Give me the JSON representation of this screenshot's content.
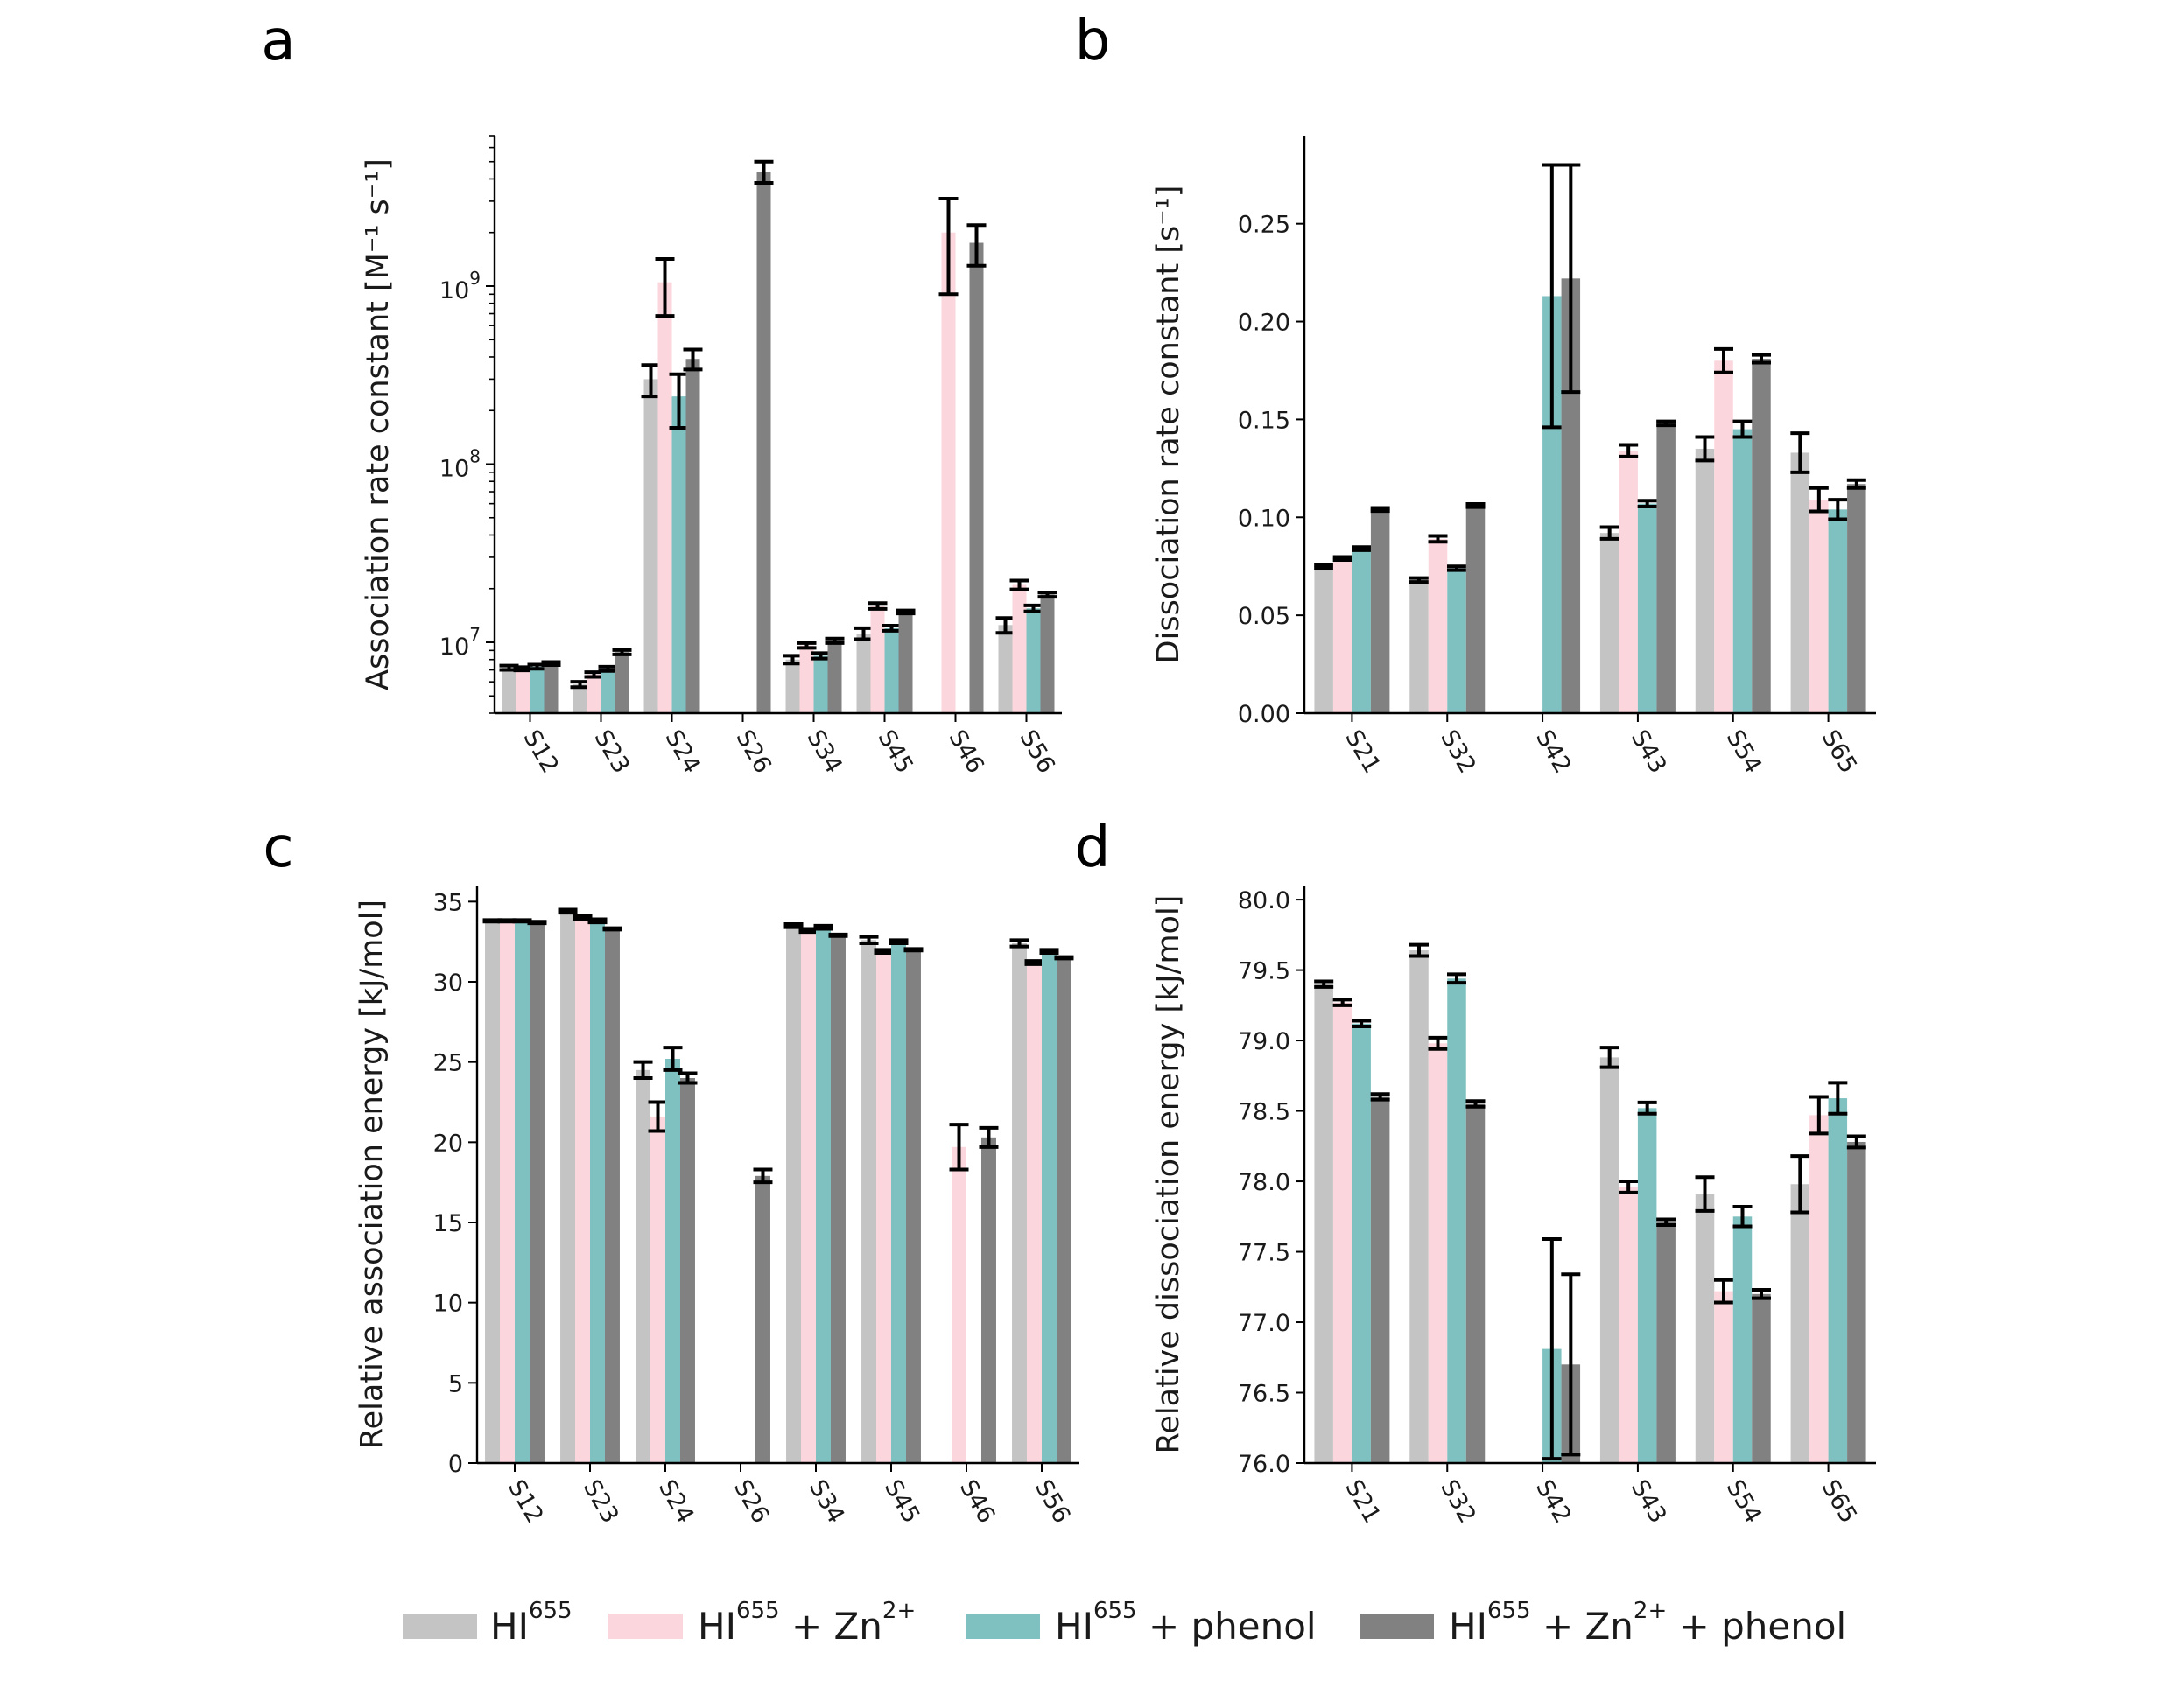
{
  "series_style": [
    {
      "color": "#c4c4c4"
    },
    {
      "color": "#fbd6dd"
    },
    {
      "color": "#7fc1c1"
    },
    {
      "color": "#818181"
    }
  ],
  "legend": [
    {
      "base": "HI",
      "sup": "655",
      "rest": ""
    },
    {
      "base": "HI",
      "sup": "655",
      "rest": " + Zn",
      "sup2": "2+"
    },
    {
      "base": "HI",
      "sup": "655",
      "rest": " + phenol"
    },
    {
      "base": "HI",
      "sup": "655",
      "rest": " + Zn",
      "sup2": "2+",
      "rest2": " + phenol"
    }
  ],
  "chart_data": [
    {
      "panel": "a",
      "type": "bar",
      "ylabel": "Association rate constant [M⁻¹ s⁻¹]",
      "yscale": "log",
      "ylim": [
        4000000,
        7000000000
      ],
      "yticks": [
        10000000,
        100000000,
        1000000000
      ],
      "ytick_labels": [
        {
          "base": "10",
          "exp": "7"
        },
        {
          "base": "10",
          "exp": "8"
        },
        {
          "base": "10",
          "exp": "9"
        }
      ],
      "categories": [
        "S12",
        "S23",
        "S24",
        "S26",
        "S34",
        "S45",
        "S46",
        "S56"
      ],
      "series": [
        {
          "values": [
            7200000.0,
            5800000.0,
            300000000.0,
            null,
            8000000.0,
            11200000.0,
            null,
            12500000.0
          ],
          "err": [
            200000.0,
            200000.0,
            60000000.0,
            null,
            400000.0,
            800000.0,
            null,
            1200000.0
          ]
        },
        {
          "values": [
            7100000.0,
            6600000.0,
            1050000000.0,
            null,
            9600000.0,
            16000000.0,
            2000000000.0,
            21000000.0
          ],
          "err": [
            150000.0,
            200000.0,
            370000000.0,
            null,
            300000.0,
            600000.0,
            1100000000.0,
            1200000.0
          ]
        },
        {
          "values": [
            7300000.0,
            7100000.0,
            240000000.0,
            null,
            8400000.0,
            12000000.0,
            null,
            15500000.0
          ],
          "err": [
            200000.0,
            200000.0,
            80000000.0,
            null,
            300000.0,
            400000.0,
            null,
            600000.0
          ]
        },
        {
          "values": [
            7600000.0,
            8800000.0,
            390000000.0,
            4400000000.0,
            10200000.0,
            14800000.0,
            1750000000.0,
            18500000.0
          ],
          "err": [
            150000.0,
            250000.0,
            50000000.0,
            600000000.0,
            300000.0,
            300000.0,
            450000000.0,
            500000.0
          ]
        }
      ]
    },
    {
      "panel": "b",
      "type": "bar",
      "ylabel": "Dissociation rate constant [s⁻¹]",
      "ylim": [
        0,
        0.295
      ],
      "yticks": [
        0.0,
        0.05,
        0.1,
        0.15,
        0.2,
        0.25
      ],
      "ytick_labels": [
        "0.00",
        "0.05",
        "0.10",
        "0.15",
        "0.20",
        "0.25"
      ],
      "categories": [
        "S21",
        "S32",
        "S42",
        "S43",
        "S54",
        "S65"
      ],
      "series": [
        {
          "values": [
            0.075,
            0.068,
            null,
            0.092,
            0.135,
            0.133
          ],
          "err": [
            0.0008,
            0.001,
            null,
            0.003,
            0.006,
            0.01
          ]
        },
        {
          "values": [
            0.079,
            0.089,
            null,
            0.134,
            0.18,
            0.109
          ],
          "err": [
            0.0008,
            0.0015,
            null,
            0.003,
            0.006,
            0.006
          ]
        },
        {
          "values": [
            0.084,
            0.074,
            0.213,
            0.107,
            0.145,
            0.104
          ],
          "err": [
            0.0008,
            0.001,
            0.067,
            0.0015,
            0.004,
            0.005
          ]
        },
        {
          "values": [
            0.104,
            0.106,
            0.222,
            0.148,
            0.181,
            0.117
          ],
          "err": [
            0.0008,
            0.0008,
            0.058,
            0.001,
            0.002,
            0.002
          ]
        }
      ]
    },
    {
      "panel": "c",
      "type": "bar",
      "ylabel": "Relative association energy [kJ/mol]",
      "ylim": [
        0,
        36
      ],
      "yticks": [
        0,
        5,
        10,
        15,
        20,
        25,
        30,
        35
      ],
      "ytick_labels": [
        "0",
        "5",
        "10",
        "15",
        "20",
        "25",
        "30",
        "35"
      ],
      "categories": [
        "S12",
        "S23",
        "S24",
        "S26",
        "S34",
        "S45",
        "S46",
        "S56"
      ],
      "series": [
        {
          "values": [
            33.8,
            34.4,
            24.5,
            null,
            33.5,
            32.6,
            null,
            32.4
          ],
          "err": [
            0.05,
            0.1,
            0.5,
            null,
            0.1,
            0.2,
            null,
            0.2
          ]
        },
        {
          "values": [
            33.8,
            34.0,
            21.6,
            null,
            33.2,
            31.9,
            19.7,
            31.2
          ],
          "err": [
            0.05,
            0.1,
            0.9,
            null,
            0.1,
            0.1,
            1.4,
            0.1
          ]
        },
        {
          "values": [
            33.8,
            33.8,
            25.2,
            null,
            33.4,
            32.5,
            null,
            31.9
          ],
          "err": [
            0.05,
            0.1,
            0.7,
            null,
            0.1,
            0.1,
            null,
            0.1
          ]
        },
        {
          "values": [
            33.7,
            33.3,
            24.0,
            17.9,
            32.9,
            32.0,
            20.3,
            31.5
          ],
          "err": [
            0.05,
            0.05,
            0.3,
            0.4,
            0.05,
            0.05,
            0.6,
            0.05
          ]
        }
      ]
    },
    {
      "panel": "d",
      "type": "bar",
      "ylabel": "Relative dissociation energy [kJ/mol]",
      "ylim": [
        76.0,
        80.1
      ],
      "yticks": [
        76.0,
        76.5,
        77.0,
        77.5,
        78.0,
        78.5,
        79.0,
        79.5,
        80.0
      ],
      "ytick_labels": [
        "76.0",
        "76.5",
        "77.0",
        "77.5",
        "78.0",
        "78.5",
        "79.0",
        "79.5",
        "80.0"
      ],
      "categories": [
        "S21",
        "S32",
        "S42",
        "S43",
        "S54",
        "S65"
      ],
      "series": [
        {
          "values": [
            79.4,
            79.64,
            null,
            78.88,
            77.91,
            77.98
          ],
          "err": [
            0.02,
            0.04,
            null,
            0.07,
            0.12,
            0.2
          ]
        },
        {
          "values": [
            79.27,
            78.98,
            null,
            77.96,
            77.22,
            78.47
          ],
          "err": [
            0.02,
            0.04,
            null,
            0.04,
            0.08,
            0.13
          ]
        },
        {
          "values": [
            79.12,
            79.44,
            76.81,
            78.52,
            77.75,
            78.59
          ],
          "err": [
            0.02,
            0.03,
            0.78,
            0.04,
            0.07,
            0.11
          ]
        },
        {
          "values": [
            78.6,
            78.55,
            76.7,
            77.71,
            77.2,
            78.28
          ],
          "err": [
            0.02,
            0.02,
            0.64,
            0.02,
            0.03,
            0.04
          ]
        }
      ]
    }
  ]
}
